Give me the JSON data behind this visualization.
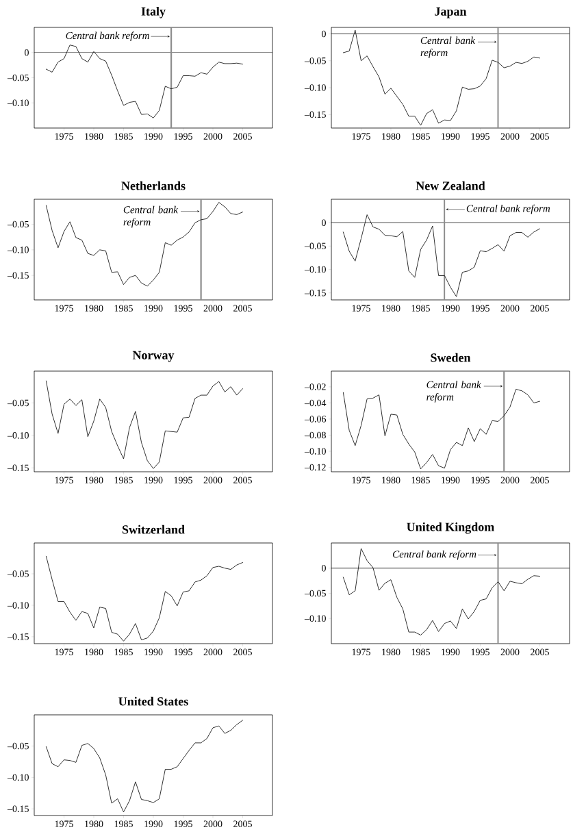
{
  "chart_data": [
    {
      "type": "line",
      "title": "Italy",
      "color": "#1a1a1a",
      "x": [
        1972,
        1973,
        1974,
        1975,
        1976,
        1977,
        1978,
        1979,
        1980,
        1981,
        1982,
        1983,
        1984,
        1985,
        1986,
        1987,
        1988,
        1989,
        1990,
        1991,
        1992,
        1993,
        1994,
        1995,
        1996,
        1997,
        1998,
        1999,
        2000,
        2001,
        2002,
        2003,
        2004,
        2005
      ],
      "values": [
        -0.033,
        -0.039,
        -0.019,
        -0.012,
        0.015,
        0.012,
        -0.012,
        -0.019,
        0.002,
        -0.012,
        -0.017,
        -0.045,
        -0.076,
        -0.105,
        -0.099,
        -0.097,
        -0.123,
        -0.122,
        -0.13,
        -0.115,
        -0.067,
        -0.072,
        -0.069,
        -0.046,
        -0.046,
        -0.047,
        -0.04,
        -0.043,
        -0.029,
        -0.019,
        -0.022,
        -0.022,
        -0.021,
        -0.023
      ],
      "xlim": [
        1970,
        2010
      ],
      "ylim": [
        -0.15,
        0.05
      ],
      "xticks": [
        1975,
        1980,
        1985,
        1990,
        1995,
        2000,
        2005
      ],
      "yticks": [
        {
          "value": -0.1,
          "label": "–0.10"
        },
        {
          "value": -0.05,
          "label": "–0.05"
        },
        {
          "value": 0,
          "label": "0"
        }
      ],
      "ref_lines": [
        {
          "axis": "y",
          "value": 0,
          "color": "#000000"
        },
        {
          "axis": "x",
          "value": 1993,
          "label": "Central bank reform",
          "color": "#8c8c8c"
        }
      ]
    },
    {
      "type": "line",
      "title": "Japan",
      "color": "#1a1a1a",
      "x": [
        1972,
        1973,
        1974,
        1975,
        1976,
        1977,
        1978,
        1979,
        1980,
        1981,
        1982,
        1983,
        1984,
        1985,
        1986,
        1987,
        1988,
        1989,
        1990,
        1991,
        1992,
        1993,
        1994,
        1995,
        1996,
        1997,
        1998,
        1999,
        2000,
        2001,
        2002,
        2003,
        2004,
        2005
      ],
      "values": [
        -0.035,
        -0.032,
        0.007,
        -0.05,
        -0.041,
        -0.061,
        -0.08,
        -0.112,
        -0.101,
        -0.116,
        -0.131,
        -0.153,
        -0.153,
        -0.17,
        -0.148,
        -0.141,
        -0.166,
        -0.16,
        -0.161,
        -0.143,
        -0.099,
        -0.103,
        -0.102,
        -0.097,
        -0.083,
        -0.049,
        -0.053,
        -0.063,
        -0.06,
        -0.053,
        -0.055,
        -0.051,
        -0.043,
        -0.045
      ],
      "xlim": [
        1970,
        2010
      ],
      "ylim": [
        -0.175,
        0.012
      ],
      "xticks": [
        1975,
        1980,
        1985,
        1990,
        1995,
        2000,
        2005
      ],
      "yticks": [
        {
          "value": -0.15,
          "label": "–0.15"
        },
        {
          "value": -0.1,
          "label": "–0.10"
        },
        {
          "value": -0.05,
          "label": "–0.05"
        },
        {
          "value": 0,
          "label": "0"
        }
      ],
      "ref_lines": [
        {
          "axis": "y",
          "value": 0,
          "color": "#000000"
        },
        {
          "axis": "x",
          "value": 1998,
          "label": "Central bank reform",
          "color": "#8c8c8c"
        }
      ]
    },
    {
      "type": "line",
      "title": "Netherlands",
      "color": "#1a1a1a",
      "x": [
        1972,
        1973,
        1974,
        1975,
        1976,
        1977,
        1978,
        1979,
        1980,
        1981,
        1982,
        1983,
        1984,
        1985,
        1986,
        1987,
        1988,
        1989,
        1990,
        1991,
        1992,
        1993,
        1994,
        1995,
        1996,
        1997,
        1998,
        1999,
        2000,
        2001,
        2002,
        2003,
        2004,
        2005
      ],
      "values": [
        -0.013,
        -0.062,
        -0.096,
        -0.064,
        -0.045,
        -0.076,
        -0.081,
        -0.107,
        -0.111,
        -0.1,
        -0.102,
        -0.144,
        -0.143,
        -0.168,
        -0.154,
        -0.15,
        -0.165,
        -0.171,
        -0.159,
        -0.144,
        -0.086,
        -0.091,
        -0.081,
        -0.075,
        -0.065,
        -0.047,
        -0.041,
        -0.039,
        -0.025,
        -0.007,
        -0.016,
        -0.029,
        -0.031,
        -0.026
      ],
      "xlim": [
        1970,
        2010
      ],
      "ylim": [
        -0.198,
        -0.001
      ],
      "xticks": [
        1975,
        1980,
        1985,
        1990,
        1995,
        2000,
        2005
      ],
      "yticks": [
        {
          "value": -0.15,
          "label": "–0.15"
        },
        {
          "value": -0.1,
          "label": "–0.10"
        },
        {
          "value": -0.05,
          "label": "–0.05"
        }
      ],
      "ref_lines": [
        {
          "axis": "x",
          "value": 1998,
          "label": "Central bank reform",
          "color": "#8c8c8c"
        }
      ]
    },
    {
      "type": "line",
      "title": "New Zealand",
      "color": "#1a1a1a",
      "x": [
        1972,
        1973,
        1974,
        1975,
        1976,
        1977,
        1978,
        1979,
        1980,
        1981,
        1982,
        1983,
        1984,
        1985,
        1986,
        1987,
        1988,
        1989,
        1990,
        1991,
        1992,
        1993,
        1994,
        1995,
        1996,
        1997,
        1998,
        1999,
        2000,
        2001,
        2002,
        2003,
        2004,
        2005
      ],
      "values": [
        -0.02,
        -0.061,
        -0.082,
        -0.034,
        0.017,
        -0.009,
        -0.014,
        -0.027,
        -0.028,
        -0.03,
        -0.019,
        -0.103,
        -0.117,
        -0.057,
        -0.037,
        -0.007,
        -0.113,
        -0.113,
        -0.138,
        -0.158,
        -0.106,
        -0.103,
        -0.095,
        -0.06,
        -0.062,
        -0.055,
        -0.047,
        -0.061,
        -0.028,
        -0.021,
        -0.021,
        -0.031,
        -0.02,
        -0.013
      ],
      "xlim": [
        1970,
        2010
      ],
      "ylim": [
        -0.165,
        0.05
      ],
      "xticks": [
        1975,
        1980,
        1985,
        1990,
        1995,
        2000,
        2005
      ],
      "yticks": [
        {
          "value": -0.15,
          "label": "–0.15"
        },
        {
          "value": -0.1,
          "label": "–0.10"
        },
        {
          "value": -0.05,
          "label": "–0.05"
        },
        {
          "value": 0,
          "label": "0"
        }
      ],
      "ref_lines": [
        {
          "axis": "y",
          "value": 0,
          "color": "#000000"
        },
        {
          "axis": "x",
          "value": 1989,
          "label": "Central bank reform",
          "color": "#8c8c8c"
        }
      ]
    },
    {
      "type": "line",
      "title": "Norway",
      "color": "#1a1a1a",
      "x": [
        1972,
        1973,
        1974,
        1975,
        1976,
        1977,
        1978,
        1979,
        1980,
        1981,
        1982,
        1983,
        1984,
        1985,
        1986,
        1987,
        1988,
        1989,
        1990,
        1991,
        1992,
        1993,
        1994,
        1995,
        1996,
        1997,
        1998,
        1999,
        2000,
        2001,
        2002,
        2003,
        2004,
        2005
      ],
      "values": [
        -0.016,
        -0.067,
        -0.097,
        -0.052,
        -0.044,
        -0.054,
        -0.045,
        -0.102,
        -0.078,
        -0.044,
        -0.057,
        -0.094,
        -0.116,
        -0.136,
        -0.088,
        -0.063,
        -0.111,
        -0.139,
        -0.151,
        -0.141,
        -0.093,
        -0.094,
        -0.095,
        -0.073,
        -0.072,
        -0.043,
        -0.038,
        -0.038,
        -0.024,
        -0.017,
        -0.033,
        -0.025,
        -0.038,
        -0.028
      ],
      "xlim": [
        1970,
        2010
      ],
      "ylim": [
        -0.156,
        -0.001
      ],
      "xticks": [
        1975,
        1980,
        1985,
        1990,
        1995,
        2000,
        2005
      ],
      "yticks": [
        {
          "value": -0.15,
          "label": "–0.15"
        },
        {
          "value": -0.1,
          "label": "–0.10"
        },
        {
          "value": -0.05,
          "label": "–0.05"
        }
      ]
    },
    {
      "type": "line",
      "title": "Sweden",
      "color": "#1a1a1a",
      "x": [
        1972,
        1973,
        1974,
        1975,
        1976,
        1977,
        1978,
        1979,
        1980,
        1981,
        1982,
        1983,
        1984,
        1985,
        1986,
        1987,
        1988,
        1989,
        1990,
        1991,
        1992,
        1993,
        1994,
        1995,
        1996,
        1997,
        1998,
        1999,
        2000,
        2001,
        2002,
        2003,
        2004,
        2005
      ],
      "values": [
        -0.027,
        -0.074,
        -0.093,
        -0.068,
        -0.035,
        -0.034,
        -0.03,
        -0.081,
        -0.054,
        -0.055,
        -0.079,
        -0.091,
        -0.101,
        -0.122,
        -0.114,
        -0.104,
        -0.118,
        -0.121,
        -0.098,
        -0.089,
        -0.093,
        -0.071,
        -0.088,
        -0.072,
        -0.079,
        -0.062,
        -0.063,
        -0.056,
        -0.045,
        -0.023,
        -0.025,
        -0.03,
        -0.04,
        -0.038
      ],
      "xlim": [
        1970,
        2010
      ],
      "ylim": [
        -0.1255,
        -0.0005
      ],
      "xticks": [
        1975,
        1980,
        1985,
        1990,
        1995,
        2000,
        2005
      ],
      "yticks": [
        {
          "value": -0.12,
          "label": "–0.12"
        },
        {
          "value": -0.1,
          "label": "–0.10"
        },
        {
          "value": -0.08,
          "label": "–0.08"
        },
        {
          "value": -0.06,
          "label": "–0.06"
        },
        {
          "value": -0.04,
          "label": "–0.04"
        },
        {
          "value": -0.02,
          "label": "–0.02"
        }
      ],
      "ref_lines": [
        {
          "axis": "x",
          "value": 1999,
          "label": "Central bank reform",
          "color": "#8c8c8c"
        }
      ]
    },
    {
      "type": "line",
      "title": "Switzerland",
      "color": "#1a1a1a",
      "x": [
        1972,
        1973,
        1974,
        1975,
        1976,
        1977,
        1978,
        1979,
        1980,
        1981,
        1982,
        1983,
        1984,
        1985,
        1986,
        1987,
        1988,
        1989,
        1990,
        1991,
        1992,
        1993,
        1994,
        1995,
        1996,
        1997,
        1998,
        1999,
        2000,
        2001,
        2002,
        2003,
        2004,
        2005
      ],
      "values": [
        -0.022,
        -0.059,
        -0.094,
        -0.094,
        -0.111,
        -0.124,
        -0.11,
        -0.113,
        -0.136,
        -0.103,
        -0.105,
        -0.143,
        -0.146,
        -0.157,
        -0.146,
        -0.129,
        -0.155,
        -0.152,
        -0.141,
        -0.12,
        -0.078,
        -0.085,
        -0.101,
        -0.079,
        -0.077,
        -0.063,
        -0.06,
        -0.053,
        -0.04,
        -0.038,
        -0.041,
        -0.043,
        -0.036,
        -0.032
      ],
      "xlim": [
        1970,
        2010
      ],
      "ylim": [
        -0.161,
        -0.001
      ],
      "xticks": [
        1975,
        1980,
        1985,
        1990,
        1995,
        2000,
        2005
      ],
      "yticks": [
        {
          "value": -0.15,
          "label": "–0.15"
        },
        {
          "value": -0.1,
          "label": "–0.10"
        },
        {
          "value": -0.05,
          "label": "–0.05"
        }
      ]
    },
    {
      "type": "line",
      "title": "United Kingdom",
      "color": "#1a1a1a",
      "x": [
        1972,
        1973,
        1974,
        1975,
        1976,
        1977,
        1978,
        1979,
        1980,
        1981,
        1982,
        1983,
        1984,
        1985,
        1986,
        1987,
        1988,
        1989,
        1990,
        1991,
        1992,
        1993,
        1994,
        1995,
        1996,
        1997,
        1998,
        1999,
        2000,
        2001,
        2002,
        2003,
        2004,
        2005
      ],
      "values": [
        -0.018,
        -0.053,
        -0.045,
        0.039,
        0.015,
        0.001,
        -0.044,
        -0.03,
        -0.023,
        -0.058,
        -0.081,
        -0.127,
        -0.127,
        -0.133,
        -0.122,
        -0.104,
        -0.126,
        -0.11,
        -0.105,
        -0.12,
        -0.081,
        -0.101,
        -0.086,
        -0.064,
        -0.061,
        -0.039,
        -0.027,
        -0.045,
        -0.026,
        -0.029,
        -0.031,
        -0.022,
        -0.015,
        -0.016
      ],
      "xlim": [
        1970,
        2010
      ],
      "ylim": [
        -0.15,
        0.05
      ],
      "xticks": [
        1975,
        1980,
        1985,
        1990,
        1995,
        2000,
        2005
      ],
      "yticks": [
        {
          "value": -0.1,
          "label": "–0.10"
        },
        {
          "value": -0.05,
          "label": "–0.05"
        },
        {
          "value": 0,
          "label": "0"
        }
      ],
      "ref_lines": [
        {
          "axis": "y",
          "value": 0,
          "color": "#000000"
        },
        {
          "axis": "x",
          "value": 1998,
          "label": "Central bank reform",
          "color": "#8c8c8c"
        }
      ]
    },
    {
      "type": "line",
      "title": "United States",
      "color": "#1a1a1a",
      "x": [
        1972,
        1973,
        1974,
        1975,
        1976,
        1977,
        1978,
        1979,
        1980,
        1981,
        1982,
        1983,
        1984,
        1985,
        1986,
        1987,
        1988,
        1989,
        1990,
        1991,
        1992,
        1993,
        1994,
        1995,
        1996,
        1997,
        1998,
        1999,
        2000,
        2001,
        2002,
        2003,
        2004,
        2005
      ],
      "values": [
        -0.051,
        -0.078,
        -0.083,
        -0.072,
        -0.073,
        -0.076,
        -0.049,
        -0.046,
        -0.054,
        -0.069,
        -0.096,
        -0.141,
        -0.134,
        -0.155,
        -0.137,
        -0.107,
        -0.135,
        -0.137,
        -0.14,
        -0.134,
        -0.087,
        -0.087,
        -0.083,
        -0.07,
        -0.057,
        -0.045,
        -0.045,
        -0.038,
        -0.021,
        -0.018,
        -0.03,
        -0.025,
        -0.016,
        -0.009
      ],
      "xlim": [
        1970,
        2010
      ],
      "ylim": [
        -0.1606,
        -0.0004
      ],
      "xticks": [
        1975,
        1980,
        1985,
        1990,
        1995,
        2000,
        2005
      ],
      "yticks": [
        {
          "value": -0.15,
          "label": "–0.15"
        },
        {
          "value": -0.1,
          "label": "–0.10"
        },
        {
          "value": -0.05,
          "label": "–0.05"
        }
      ]
    }
  ]
}
